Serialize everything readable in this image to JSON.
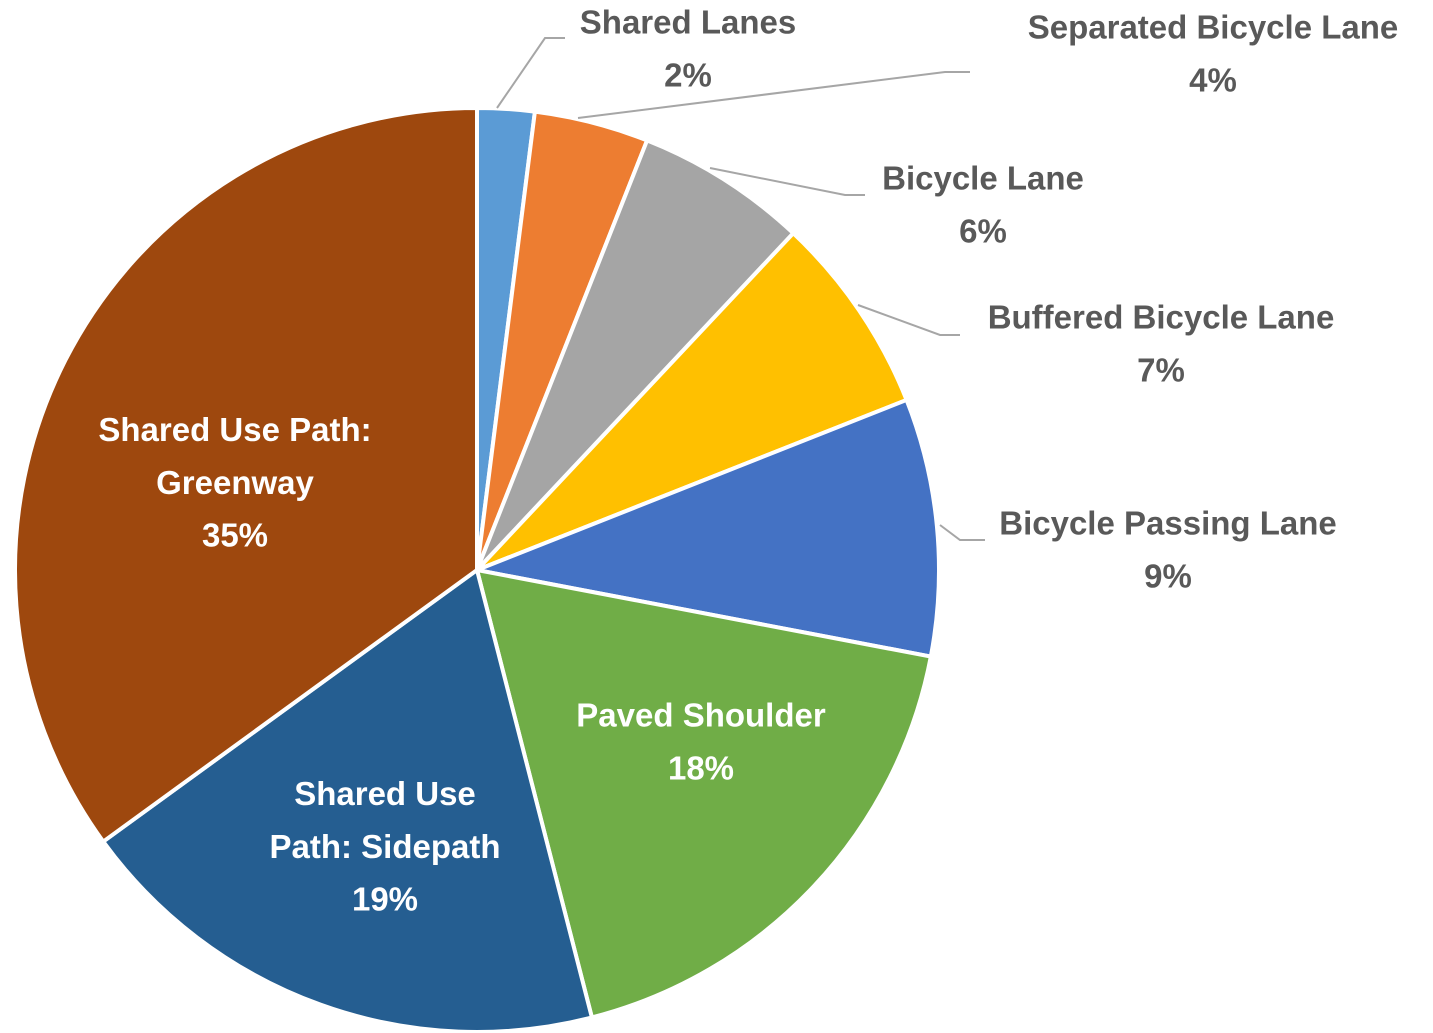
{
  "chart_data": {
    "type": "pie",
    "categories": [
      "Shared Lanes",
      "Separated Bicycle Lane",
      "Bicycle Lane",
      "Buffered Bicycle Lane",
      "Bicycle Passing Lane",
      "Paved Shoulder",
      "Shared Use Path: Sidepath",
      "Shared Use Path: Greenway"
    ],
    "values": [
      2,
      4,
      6,
      7,
      9,
      18,
      19,
      35
    ],
    "value_labels": [
      "2%",
      "4%",
      "6%",
      "7%",
      "9%",
      "18%",
      "19%",
      "35%"
    ],
    "colors": [
      "#5b9bd5",
      "#ed7d31",
      "#a5a5a5",
      "#ffc000",
      "#4472c4",
      "#70ad47",
      "#255e91",
      "#9e480e"
    ]
  }
}
